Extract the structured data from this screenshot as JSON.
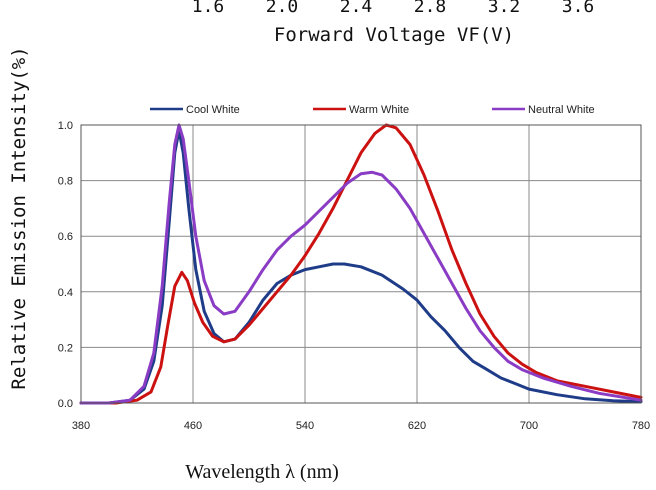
{
  "upper_chart_fragment": {
    "tick_labels": [
      "1.6",
      "2.0",
      "2.4",
      "2.8",
      "3.2",
      "3.6"
    ],
    "xlabel": "Forward Voltage VF(V)"
  },
  "chart_data": {
    "type": "line",
    "title": "",
    "xlabel": "Wavelength λ (nm)",
    "ylabel": "Relative Emission Intensity(%)",
    "xlim": [
      380,
      780
    ],
    "ylim": [
      0,
      1.0
    ],
    "x_ticks": [
      380,
      460,
      540,
      620,
      700,
      780
    ],
    "y_ticks": [
      "0.0",
      "0.2",
      "0.4",
      "0.6",
      "0.8",
      "1.0"
    ],
    "grid": true,
    "legend_position": "top",
    "series": [
      {
        "name": "Cool White",
        "color": "#1f3c88",
        "points": [
          [
            380,
            0
          ],
          [
            400,
            0
          ],
          [
            415,
            0.01
          ],
          [
            425,
            0.05
          ],
          [
            432,
            0.15
          ],
          [
            438,
            0.35
          ],
          [
            443,
            0.65
          ],
          [
            447,
            0.9
          ],
          [
            450,
            0.98
          ],
          [
            453,
            0.9
          ],
          [
            457,
            0.7
          ],
          [
            462,
            0.48
          ],
          [
            468,
            0.33
          ],
          [
            475,
            0.25
          ],
          [
            482,
            0.22
          ],
          [
            490,
            0.23
          ],
          [
            500,
            0.29
          ],
          [
            510,
            0.37
          ],
          [
            520,
            0.43
          ],
          [
            530,
            0.46
          ],
          [
            540,
            0.48
          ],
          [
            550,
            0.49
          ],
          [
            560,
            0.5
          ],
          [
            568,
            0.5
          ],
          [
            580,
            0.49
          ],
          [
            595,
            0.46
          ],
          [
            610,
            0.41
          ],
          [
            620,
            0.37
          ],
          [
            630,
            0.31
          ],
          [
            640,
            0.26
          ],
          [
            650,
            0.2
          ],
          [
            660,
            0.15
          ],
          [
            670,
            0.12
          ],
          [
            680,
            0.09
          ],
          [
            690,
            0.07
          ],
          [
            700,
            0.05
          ],
          [
            720,
            0.03
          ],
          [
            740,
            0.015
          ],
          [
            760,
            0.008
          ],
          [
            780,
            0.005
          ]
        ]
      },
      {
        "name": "Warm White",
        "color": "#cc1111",
        "points": [
          [
            380,
            0
          ],
          [
            405,
            0
          ],
          [
            420,
            0.01
          ],
          [
            430,
            0.04
          ],
          [
            437,
            0.13
          ],
          [
            442,
            0.28
          ],
          [
            447,
            0.42
          ],
          [
            452,
            0.47
          ],
          [
            456,
            0.44
          ],
          [
            461,
            0.36
          ],
          [
            467,
            0.29
          ],
          [
            474,
            0.24
          ],
          [
            482,
            0.22
          ],
          [
            490,
            0.23
          ],
          [
            500,
            0.28
          ],
          [
            510,
            0.34
          ],
          [
            520,
            0.4
          ],
          [
            530,
            0.46
          ],
          [
            540,
            0.53
          ],
          [
            550,
            0.61
          ],
          [
            560,
            0.7
          ],
          [
            570,
            0.8
          ],
          [
            580,
            0.9
          ],
          [
            590,
            0.97
          ],
          [
            598,
            1.0
          ],
          [
            605,
            0.99
          ],
          [
            615,
            0.93
          ],
          [
            625,
            0.82
          ],
          [
            635,
            0.69
          ],
          [
            645,
            0.55
          ],
          [
            655,
            0.43
          ],
          [
            665,
            0.32
          ],
          [
            675,
            0.24
          ],
          [
            685,
            0.18
          ],
          [
            695,
            0.14
          ],
          [
            705,
            0.11
          ],
          [
            720,
            0.08
          ],
          [
            740,
            0.06
          ],
          [
            760,
            0.04
          ],
          [
            780,
            0.02
          ]
        ]
      },
      {
        "name": "Neutral White",
        "color": "#8a3cc4",
        "points": [
          [
            380,
            0
          ],
          [
            400,
            0
          ],
          [
            415,
            0.01
          ],
          [
            425,
            0.06
          ],
          [
            432,
            0.18
          ],
          [
            438,
            0.42
          ],
          [
            443,
            0.72
          ],
          [
            447,
            0.93
          ],
          [
            450,
            1.0
          ],
          [
            453,
            0.95
          ],
          [
            457,
            0.8
          ],
          [
            462,
            0.6
          ],
          [
            468,
            0.44
          ],
          [
            475,
            0.35
          ],
          [
            482,
            0.32
          ],
          [
            490,
            0.33
          ],
          [
            500,
            0.4
          ],
          [
            510,
            0.48
          ],
          [
            520,
            0.55
          ],
          [
            530,
            0.6
          ],
          [
            540,
            0.64
          ],
          [
            550,
            0.69
          ],
          [
            560,
            0.74
          ],
          [
            570,
            0.79
          ],
          [
            580,
            0.825
          ],
          [
            588,
            0.83
          ],
          [
            595,
            0.82
          ],
          [
            605,
            0.77
          ],
          [
            615,
            0.7
          ],
          [
            625,
            0.61
          ],
          [
            635,
            0.52
          ],
          [
            645,
            0.43
          ],
          [
            655,
            0.34
          ],
          [
            665,
            0.26
          ],
          [
            675,
            0.2
          ],
          [
            685,
            0.15
          ],
          [
            695,
            0.12
          ],
          [
            710,
            0.09
          ],
          [
            730,
            0.06
          ],
          [
            750,
            0.035
          ],
          [
            780,
            0.01
          ]
        ]
      }
    ]
  }
}
